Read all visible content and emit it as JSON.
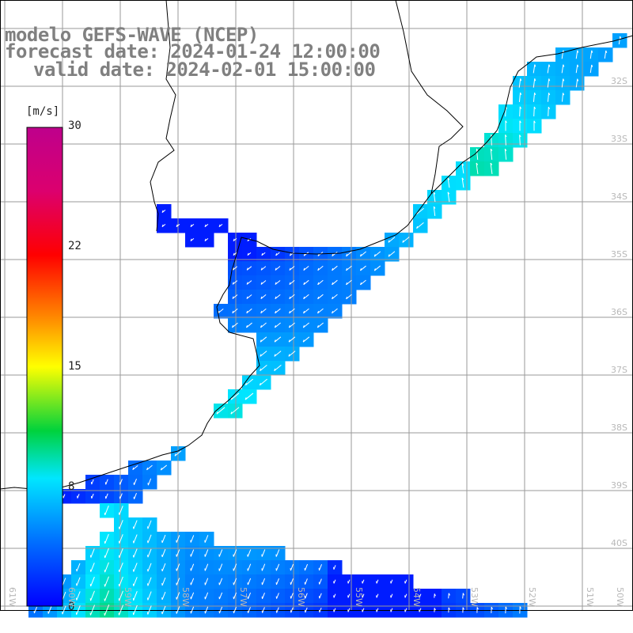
{
  "title": {
    "line1": "modelo GEFS-WAVE (NCEP)",
    "line2": "forecast date: 2024-01-24 12:00:00",
    "line3": "valid date: 2024-02-01 15:00:00"
  },
  "colorbar": {
    "unit": "[m/s]",
    "ticks": [
      "30",
      "22",
      "15",
      "8",
      "0"
    ],
    "tick_values": [
      30,
      22,
      15,
      8,
      0
    ]
  },
  "lon_labels": [
    "61W",
    "60W",
    "59W",
    "58W",
    "57W",
    "56W",
    "55W",
    "54W",
    "53W",
    "52W",
    "51W",
    "50W"
  ],
  "lat_labels": [
    "32S",
    "33S",
    "34S",
    "35S",
    "36S",
    "37S",
    "38S",
    "39S",
    "40S"
  ],
  "colors": {
    "land": "#ffffff",
    "grid": "#9a9a9a",
    "coast": "#000000",
    "arrow": "#ffffff",
    "title": "#808080"
  }
}
